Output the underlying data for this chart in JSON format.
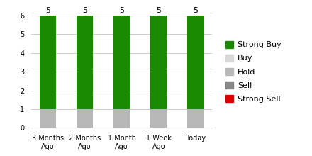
{
  "categories": [
    "3 Months\nAgo",
    "2 Months\nAgo",
    "1 Month\nAgo",
    "1 Week\nAgo",
    "Today"
  ],
  "strong_buy": [
    5,
    5,
    5,
    5,
    5
  ],
  "buy": [
    0,
    0,
    0,
    0,
    0
  ],
  "hold": [
    1,
    1,
    1,
    1,
    1
  ],
  "sell": [
    0,
    0,
    0,
    0,
    0
  ],
  "strong_sell": [
    0,
    0,
    0,
    0,
    0
  ],
  "colors": {
    "strong_buy": "#1a8a00",
    "buy": "#d8d8d8",
    "hold": "#b8b8b8",
    "sell": "#888888",
    "strong_sell": "#dd0000"
  },
  "ylim": [
    0,
    6
  ],
  "yticks": [
    0,
    1,
    2,
    3,
    4,
    5,
    6
  ],
  "bar_labels": [
    5,
    5,
    5,
    5,
    5
  ],
  "legend_labels": [
    "Strong Buy",
    "Buy",
    "Hold",
    "Sell",
    "Strong Sell"
  ],
  "background_color": "#ffffff",
  "grid_color": "#cccccc",
  "bar_width": 0.45,
  "label_fontsize": 8,
  "tick_fontsize": 7,
  "legend_fontsize": 8
}
